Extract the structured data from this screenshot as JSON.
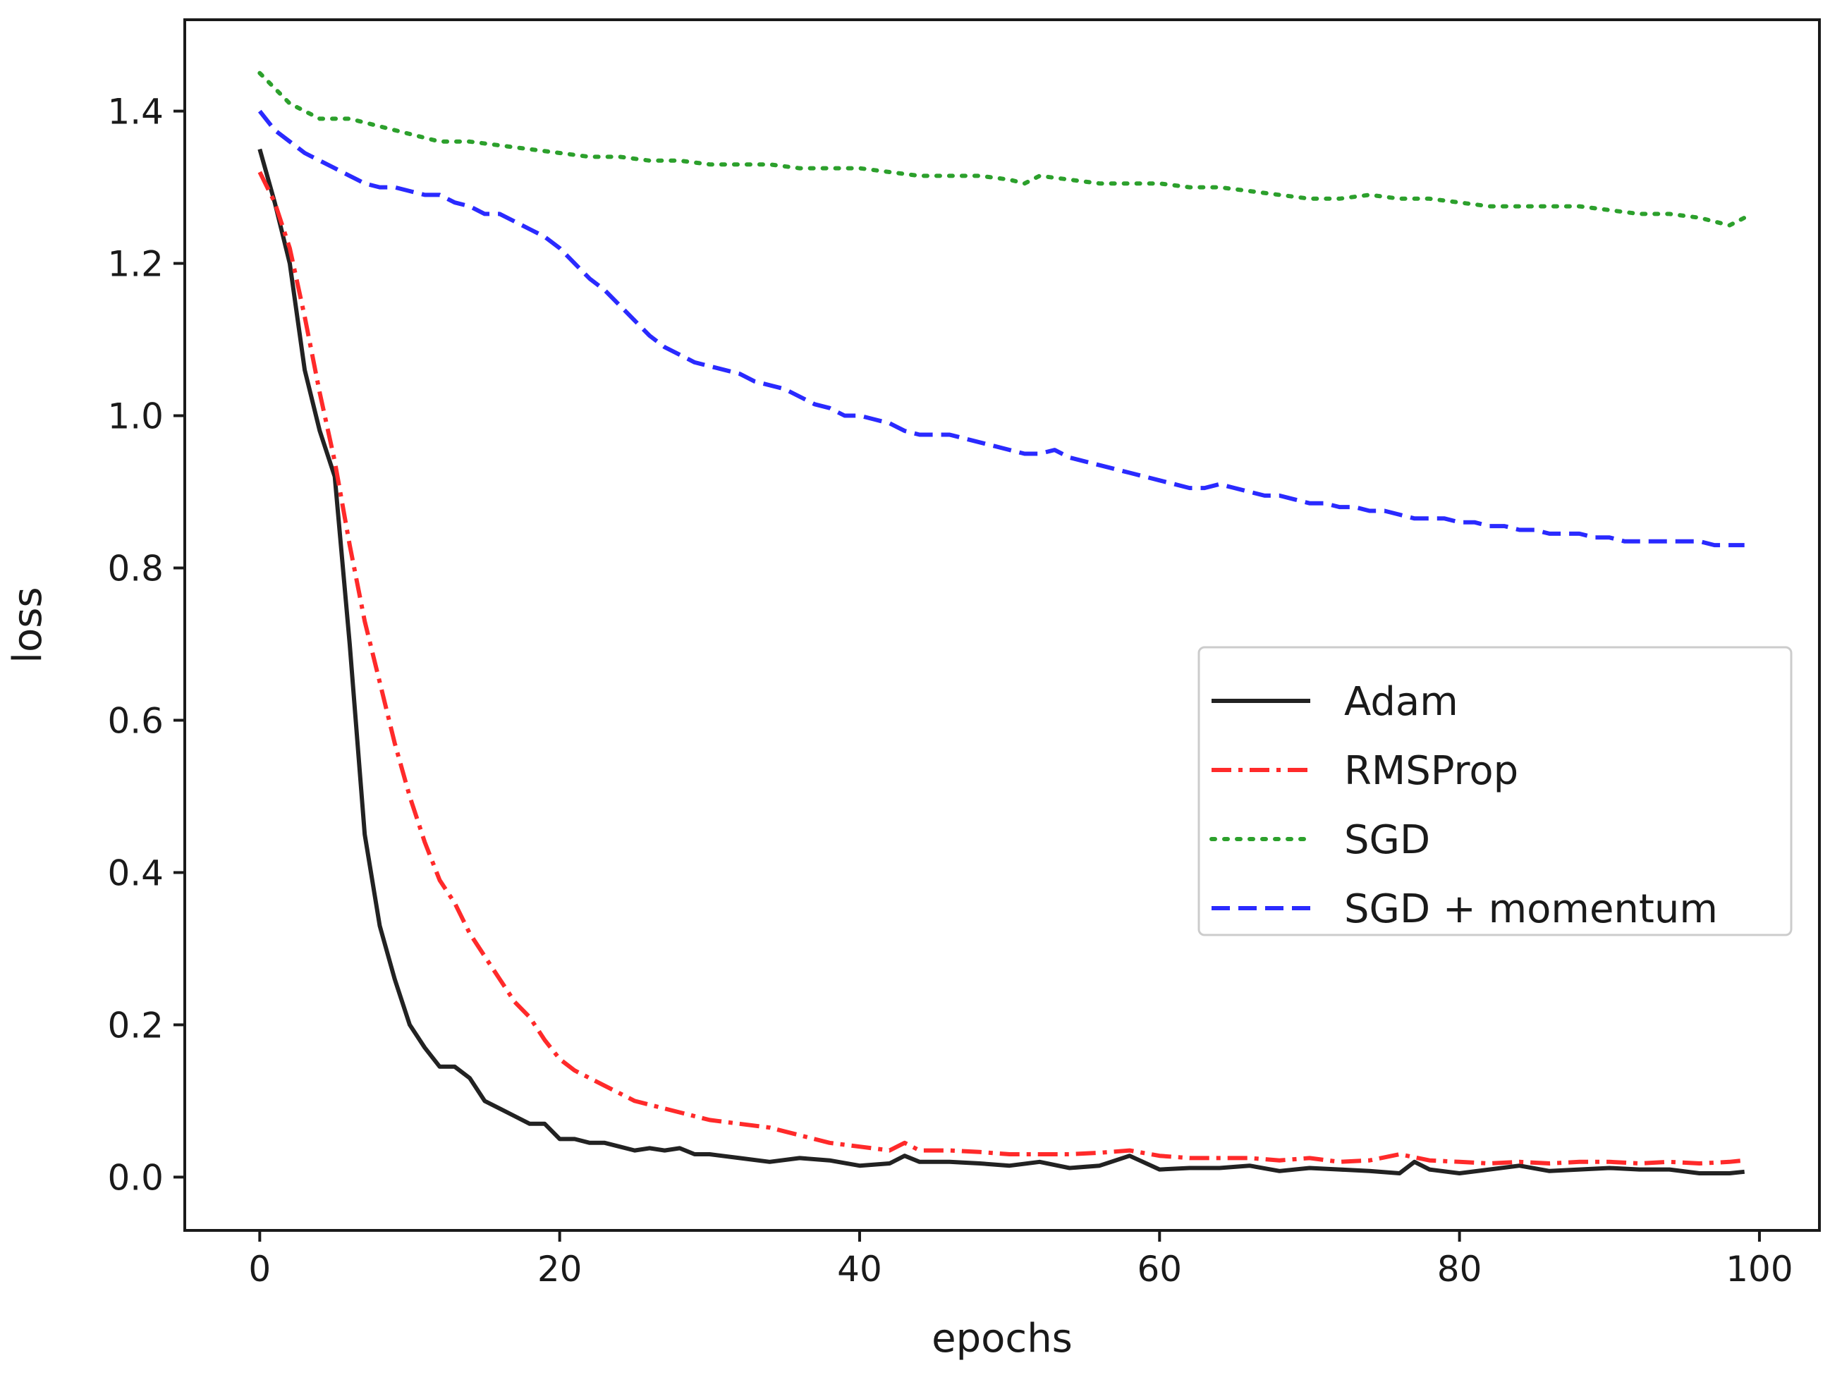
{
  "chart_data": {
    "type": "line",
    "title": "",
    "xlabel": "epochs",
    "ylabel": "loss",
    "xlim": [
      -5,
      104
    ],
    "ylim": [
      -0.07,
      1.52
    ],
    "xticks": [
      0,
      20,
      40,
      60,
      80,
      100
    ],
    "xtick_labels": [
      "0",
      "20",
      "40",
      "60",
      "80",
      "100"
    ],
    "yticks": [
      0.0,
      0.2,
      0.4,
      0.6,
      0.8,
      1.0,
      1.2,
      1.4
    ],
    "ytick_labels": [
      "0.0",
      "0.2",
      "0.4",
      "0.6",
      "0.8",
      "1.0",
      "1.2",
      "1.4"
    ],
    "legend_position": "center-right",
    "series": [
      {
        "name": "Adam",
        "color": "#222222",
        "style": "solid",
        "x": [
          0,
          1,
          2,
          3,
          4,
          5,
          6,
          7,
          8,
          9,
          10,
          11,
          12,
          13,
          14,
          15,
          16,
          17,
          18,
          19,
          20,
          21,
          22,
          23,
          24,
          25,
          26,
          27,
          28,
          29,
          30,
          32,
          34,
          36,
          38,
          40,
          42,
          43,
          44,
          46,
          48,
          50,
          52,
          54,
          56,
          58,
          60,
          62,
          64,
          66,
          68,
          70,
          72,
          74,
          76,
          77,
          78,
          80,
          82,
          84,
          86,
          88,
          90,
          92,
          94,
          96,
          98,
          99
        ],
        "values": [
          1.35,
          1.28,
          1.2,
          1.06,
          0.98,
          0.92,
          0.7,
          0.45,
          0.33,
          0.26,
          0.2,
          0.17,
          0.145,
          0.145,
          0.13,
          0.1,
          0.09,
          0.08,
          0.07,
          0.07,
          0.05,
          0.05,
          0.045,
          0.045,
          0.04,
          0.035,
          0.038,
          0.035,
          0.038,
          0.03,
          0.03,
          0.025,
          0.02,
          0.025,
          0.022,
          0.015,
          0.018,
          0.028,
          0.02,
          0.02,
          0.018,
          0.015,
          0.02,
          0.012,
          0.015,
          0.028,
          0.01,
          0.012,
          0.012,
          0.015,
          0.008,
          0.012,
          0.01,
          0.008,
          0.005,
          0.02,
          0.01,
          0.005,
          0.01,
          0.015,
          0.008,
          0.01,
          0.012,
          0.01,
          0.01,
          0.005,
          0.005,
          0.007
        ]
      },
      {
        "name": "RMSProp",
        "color": "#ff2a2a",
        "style": "dashdot",
        "x": [
          0,
          1,
          2,
          3,
          4,
          5,
          6,
          7,
          8,
          9,
          10,
          11,
          12,
          13,
          14,
          15,
          16,
          17,
          18,
          19,
          20,
          21,
          22,
          23,
          24,
          25,
          26,
          27,
          28,
          29,
          30,
          32,
          34,
          36,
          38,
          40,
          42,
          43,
          44,
          46,
          48,
          50,
          52,
          54,
          56,
          58,
          60,
          62,
          64,
          66,
          68,
          70,
          72,
          74,
          76,
          78,
          80,
          82,
          84,
          86,
          88,
          90,
          92,
          94,
          96,
          98,
          99
        ],
        "values": [
          1.32,
          1.28,
          1.22,
          1.13,
          1.03,
          0.94,
          0.83,
          0.73,
          0.65,
          0.57,
          0.5,
          0.44,
          0.39,
          0.36,
          0.32,
          0.29,
          0.26,
          0.23,
          0.21,
          0.18,
          0.155,
          0.14,
          0.13,
          0.12,
          0.11,
          0.1,
          0.095,
          0.09,
          0.085,
          0.08,
          0.075,
          0.07,
          0.065,
          0.055,
          0.045,
          0.04,
          0.035,
          0.045,
          0.035,
          0.035,
          0.033,
          0.03,
          0.03,
          0.03,
          0.032,
          0.035,
          0.028,
          0.025,
          0.025,
          0.025,
          0.022,
          0.025,
          0.02,
          0.022,
          0.03,
          0.022,
          0.02,
          0.018,
          0.02,
          0.018,
          0.02,
          0.02,
          0.018,
          0.02,
          0.018,
          0.02,
          0.022
        ]
      },
      {
        "name": "SGD",
        "color": "#2ca02c",
        "style": "dotted",
        "x": [
          0,
          2,
          4,
          6,
          8,
          10,
          12,
          14,
          16,
          18,
          20,
          22,
          24,
          26,
          28,
          30,
          32,
          34,
          36,
          38,
          40,
          42,
          44,
          46,
          48,
          50,
          51,
          52,
          54,
          56,
          58,
          60,
          62,
          64,
          66,
          68,
          70,
          72,
          74,
          76,
          78,
          80,
          82,
          84,
          86,
          88,
          90,
          92,
          94,
          96,
          97,
          98,
          99
        ],
        "values": [
          1.45,
          1.41,
          1.39,
          1.39,
          1.38,
          1.37,
          1.36,
          1.36,
          1.355,
          1.35,
          1.345,
          1.34,
          1.34,
          1.335,
          1.335,
          1.33,
          1.33,
          1.33,
          1.325,
          1.325,
          1.325,
          1.32,
          1.315,
          1.315,
          1.315,
          1.31,
          1.305,
          1.315,
          1.31,
          1.305,
          1.305,
          1.305,
          1.3,
          1.3,
          1.295,
          1.29,
          1.285,
          1.285,
          1.29,
          1.285,
          1.285,
          1.28,
          1.275,
          1.275,
          1.275,
          1.275,
          1.27,
          1.265,
          1.265,
          1.26,
          1.255,
          1.25,
          1.26
        ]
      },
      {
        "name": "SGD + momentum",
        "color": "#2a2aff",
        "style": "dashed",
        "x": [
          0,
          1,
          2,
          3,
          4,
          5,
          6,
          7,
          8,
          9,
          10,
          11,
          12,
          13,
          14,
          15,
          16,
          17,
          18,
          19,
          20,
          21,
          22,
          23,
          24,
          25,
          26,
          27,
          28,
          29,
          30,
          31,
          32,
          33,
          34,
          35,
          36,
          37,
          38,
          39,
          40,
          41,
          42,
          43,
          44,
          45,
          46,
          47,
          48,
          49,
          50,
          51,
          52,
          53,
          54,
          55,
          56,
          57,
          58,
          59,
          60,
          61,
          62,
          63,
          64,
          65,
          66,
          67,
          68,
          69,
          70,
          71,
          72,
          73,
          74,
          75,
          76,
          77,
          78,
          79,
          80,
          81,
          82,
          83,
          84,
          85,
          86,
          87,
          88,
          89,
          90,
          91,
          92,
          93,
          94,
          95,
          96,
          97,
          98,
          99
        ],
        "values": [
          1.4,
          1.375,
          1.36,
          1.345,
          1.335,
          1.325,
          1.315,
          1.305,
          1.3,
          1.3,
          1.295,
          1.29,
          1.29,
          1.28,
          1.275,
          1.265,
          1.265,
          1.255,
          1.245,
          1.235,
          1.22,
          1.2,
          1.18,
          1.165,
          1.145,
          1.125,
          1.105,
          1.09,
          1.08,
          1.07,
          1.065,
          1.06,
          1.055,
          1.045,
          1.04,
          1.035,
          1.025,
          1.015,
          1.01,
          1.0,
          1.0,
          0.995,
          0.99,
          0.98,
          0.975,
          0.975,
          0.975,
          0.97,
          0.965,
          0.96,
          0.955,
          0.95,
          0.95,
          0.955,
          0.945,
          0.94,
          0.935,
          0.93,
          0.925,
          0.92,
          0.915,
          0.91,
          0.905,
          0.905,
          0.91,
          0.905,
          0.9,
          0.895,
          0.895,
          0.89,
          0.885,
          0.885,
          0.88,
          0.88,
          0.875,
          0.875,
          0.87,
          0.865,
          0.865,
          0.865,
          0.86,
          0.86,
          0.855,
          0.855,
          0.85,
          0.85,
          0.845,
          0.845,
          0.845,
          0.84,
          0.84,
          0.835,
          0.835,
          0.835,
          0.835,
          0.835,
          0.835,
          0.83,
          0.83,
          0.83
        ]
      }
    ]
  }
}
